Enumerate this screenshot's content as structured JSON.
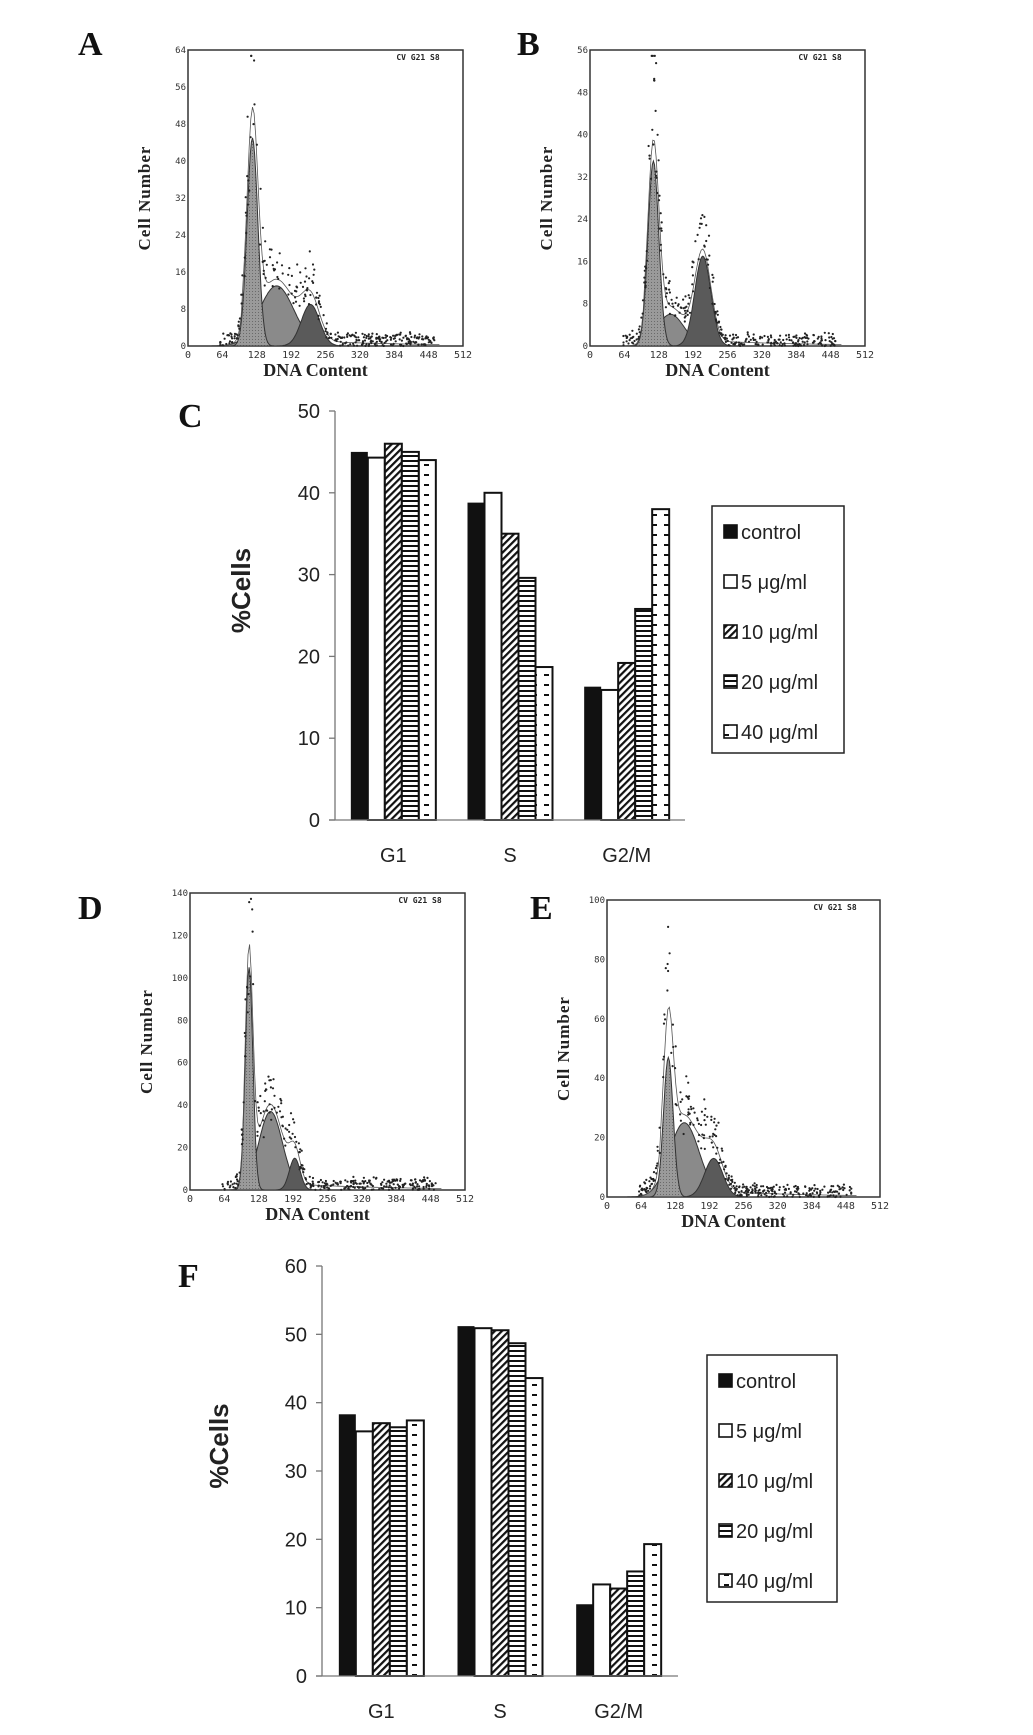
{
  "panel_labels": {
    "A": "A",
    "B": "B",
    "C": "C",
    "D": "D",
    "E": "E",
    "F": "F"
  },
  "chart_data": [
    {
      "panel": "A",
      "type": "area",
      "xlabel": "DNA Content",
      "ylabel": "Cell Number",
      "annotation": "CV G21 S8",
      "xlim": [
        0,
        512
      ],
      "xticks": [
        "0",
        "64",
        "128",
        "192",
        "256",
        "320",
        "384",
        "448",
        "512"
      ],
      "ylim": [
        0,
        64
      ],
      "yticks": [
        "0",
        "8",
        "16",
        "24",
        "32",
        "40",
        "48",
        "56",
        "64"
      ],
      "components": [
        {
          "phase": "G1",
          "peak_channel": 120,
          "height": 45,
          "sd": 10
        },
        {
          "phase": "S",
          "peak_channel": 165,
          "height": 13,
          "sd": 32
        },
        {
          "phase": "G2/M",
          "peak_channel": 228,
          "height": 9,
          "sd": 17
        }
      ]
    },
    {
      "panel": "B",
      "type": "area",
      "xlabel": "DNA Content",
      "ylabel": "Cell Number",
      "annotation": "CV G21 S8",
      "xlim": [
        0,
        512
      ],
      "xticks": [
        "0",
        "64",
        "128",
        "192",
        "256",
        "320",
        "384",
        "448",
        "512"
      ],
      "ylim": [
        0,
        56
      ],
      "yticks": [
        "0",
        "8",
        "16",
        "24",
        "32",
        "40",
        "48",
        "56"
      ],
      "components": [
        {
          "phase": "G1",
          "peak_channel": 118,
          "height": 35,
          "sd": 10
        },
        {
          "phase": "S",
          "peak_channel": 150,
          "height": 6,
          "sd": 25
        },
        {
          "phase": "G2/M",
          "peak_channel": 210,
          "height": 17,
          "sd": 15
        }
      ]
    },
    {
      "panel": "C",
      "type": "bar",
      "ylabel": "%Cells",
      "ylim": [
        0,
        50
      ],
      "yticks": [
        "0",
        "10",
        "20",
        "30",
        "40",
        "50"
      ],
      "categories": [
        "G1",
        "S",
        "G2/M"
      ],
      "legend": "right",
      "series": [
        {
          "name": "control",
          "values": [
            45,
            38.8,
            16.3
          ],
          "pattern": "solid"
        },
        {
          "name": "5 μg/ml",
          "values": [
            44.3,
            40,
            15.9
          ],
          "pattern": "white"
        },
        {
          "name": "10 μg/ml",
          "values": [
            46,
            35,
            19.2
          ],
          "pattern": "diagonal"
        },
        {
          "name": "20 μg/ml",
          "values": [
            45,
            29.6,
            25.8
          ],
          "pattern": "horizontal"
        },
        {
          "name": "40 μg/ml",
          "values": [
            44,
            18.7,
            38
          ],
          "pattern": "dashes"
        }
      ]
    },
    {
      "panel": "D",
      "type": "area",
      "xlabel": "DNA Content",
      "ylabel": "Cell Number",
      "annotation": "CV G21 S8",
      "xlim": [
        0,
        512
      ],
      "xticks": [
        "0",
        "64",
        "128",
        "192",
        "256",
        "320",
        "384",
        "448",
        "512"
      ],
      "ylim": [
        0,
        140
      ],
      "yticks": [
        "0",
        "20",
        "40",
        "60",
        "80",
        "100",
        "120",
        "140"
      ],
      "components": [
        {
          "phase": "G1",
          "peak_channel": 110,
          "height": 105,
          "sd": 7
        },
        {
          "phase": "S",
          "peak_channel": 150,
          "height": 37,
          "sd": 22
        },
        {
          "phase": "G2/M",
          "peak_channel": 195,
          "height": 15,
          "sd": 10
        }
      ]
    },
    {
      "panel": "E",
      "type": "area",
      "xlabel": "DNA Content",
      "ylabel": "Cell Number",
      "annotation": "CV G21 S8",
      "xlim": [
        0,
        512
      ],
      "xticks": [
        "0",
        "64",
        "128",
        "192",
        "256",
        "320",
        "384",
        "448",
        "512"
      ],
      "ylim": [
        0,
        100
      ],
      "yticks": [
        "0",
        "20",
        "40",
        "60",
        "80",
        "100"
      ],
      "components": [
        {
          "phase": "G1",
          "peak_channel": 115,
          "height": 47,
          "sd": 9
        },
        {
          "phase": "S",
          "peak_channel": 145,
          "height": 25,
          "sd": 28
        },
        {
          "phase": "G2/M",
          "peak_channel": 200,
          "height": 13,
          "sd": 17
        }
      ]
    },
    {
      "panel": "F",
      "type": "bar",
      "ylabel": "%Cells",
      "ylim": [
        0,
        60
      ],
      "yticks": [
        "0",
        "10",
        "20",
        "30",
        "40",
        "50",
        "60"
      ],
      "categories": [
        "G1",
        "S",
        "G2/M"
      ],
      "legend": "right",
      "series": [
        {
          "name": "control",
          "values": [
            38.3,
            51.2,
            10.5
          ],
          "pattern": "solid"
        },
        {
          "name": "5 μg/ml",
          "values": [
            35.8,
            50.9,
            13.4
          ],
          "pattern": "white"
        },
        {
          "name": "10 μg/ml",
          "values": [
            37,
            50.6,
            12.8
          ],
          "pattern": "diagonal"
        },
        {
          "name": "20 μg/ml",
          "values": [
            36.4,
            48.7,
            15.3
          ],
          "pattern": "horizontal"
        },
        {
          "name": "40 μg/ml",
          "values": [
            37.4,
            43.6,
            19.3
          ],
          "pattern": "dashes"
        }
      ]
    }
  ]
}
